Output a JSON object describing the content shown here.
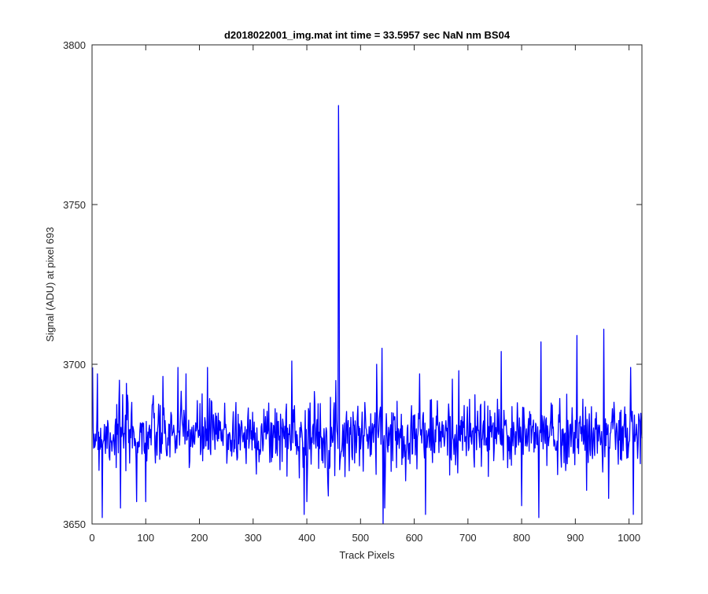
{
  "chart_data": {
    "type": "line",
    "title": "d2018022001_img.mat int time = 33.5957 sec  NaN nm BS04",
    "xlabel": "Track Pixels",
    "ylabel": "Signal (ADU) at pixel 693",
    "xlim": [
      0,
      1024
    ],
    "ylim": [
      3650,
      3800
    ],
    "xticks": [
      0,
      100,
      200,
      300,
      400,
      500,
      600,
      700,
      800,
      900,
      1000
    ],
    "yticks": [
      3650,
      3700,
      3750,
      3800
    ],
    "grid": false,
    "series": [
      {
        "color": "#0000ff",
        "noise": {
          "x_start": 1,
          "x_end": 1024,
          "baseline": 3678,
          "spread": 5.5,
          "typical_min": 3655,
          "typical_max": 3699,
          "seed": 7
        },
        "points": [
          {
            "x": 10,
            "y": 3697
          },
          {
            "x": 19,
            "y": 3652
          },
          {
            "x": 51,
            "y": 3695
          },
          {
            "x": 53,
            "y": 3655
          },
          {
            "x": 83,
            "y": 3657
          },
          {
            "x": 100,
            "y": 3657
          },
          {
            "x": 160,
            "y": 3699
          },
          {
            "x": 175,
            "y": 3697
          },
          {
            "x": 215,
            "y": 3699
          },
          {
            "x": 372,
            "y": 3701
          },
          {
            "x": 395,
            "y": 3653
          },
          {
            "x": 400,
            "y": 3657
          },
          {
            "x": 459,
            "y": 3781
          },
          {
            "x": 460,
            "y": 3752
          },
          {
            "x": 461,
            "y": 3667
          },
          {
            "x": 530,
            "y": 3700
          },
          {
            "x": 540,
            "y": 3705
          },
          {
            "x": 542,
            "y": 3650
          },
          {
            "x": 610,
            "y": 3697
          },
          {
            "x": 621,
            "y": 3653
          },
          {
            "x": 683,
            "y": 3698
          },
          {
            "x": 762,
            "y": 3704
          },
          {
            "x": 832,
            "y": 3652
          },
          {
            "x": 836,
            "y": 3707
          },
          {
            "x": 903,
            "y": 3709
          },
          {
            "x": 953,
            "y": 3711
          },
          {
            "x": 962,
            "y": 3658
          },
          {
            "x": 1003,
            "y": 3699
          },
          {
            "x": 1008,
            "y": 3653
          }
        ]
      }
    ]
  }
}
